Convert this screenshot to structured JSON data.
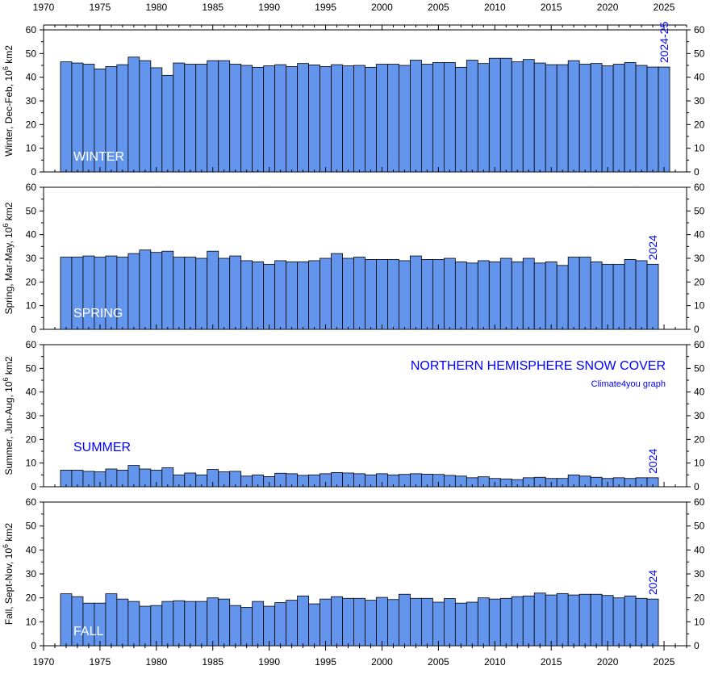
{
  "chart_data": {
    "type": "bar",
    "title": "NORTHERN HEMISPHERE SNOW COVER",
    "credit": "Climate4you graph",
    "x_ticks": [
      "1970",
      "1975",
      "1980",
      "1985",
      "1990",
      "1995",
      "2000",
      "2005",
      "2010",
      "2015",
      "2020",
      "2025"
    ],
    "xlim": [
      1970,
      2027
    ],
    "colors": {
      "bar": "#6495ed",
      "bar_edge": "#000000",
      "label_blue": "#0000ff",
      "label_white": "#ffffff"
    },
    "panels": [
      {
        "id": "winter",
        "season_label": "WINTER",
        "ylabel": "Winter, Dec-Feb, 10",
        "ylabel_sup": "6",
        "ylabel_unit": " km2",
        "end_label": "2024-25",
        "ylim": [
          0,
          60
        ],
        "y_ticks": [
          "0",
          "10",
          "20",
          "30",
          "40",
          "50",
          "60"
        ],
        "years_start": 1972,
        "values": [
          46.5,
          46.0,
          45.5,
          43.5,
          44.5,
          45.3,
          48.5,
          47.0,
          44.0,
          40.8,
          46.0,
          45.5,
          45.5,
          47.0,
          47.0,
          45.5,
          45.0,
          44.2,
          44.8,
          45.3,
          44.5,
          45.8,
          45.2,
          44.5,
          45.3,
          44.8,
          45.0,
          44.2,
          45.5,
          45.5,
          45.0,
          47.2,
          45.5,
          46.2,
          46.2,
          44.2,
          47.2,
          45.8,
          48.0,
          48.0,
          46.5,
          47.5,
          46.0,
          45.3,
          45.3,
          47.0,
          45.5,
          45.8,
          44.8,
          45.5,
          46.2,
          45.0,
          44.3,
          44.3
        ]
      },
      {
        "id": "spring",
        "season_label": "SPRING",
        "ylabel": "Spring, Mar-May, 10",
        "ylabel_sup": "6",
        "ylabel_unit": " km2",
        "end_label": "2024",
        "ylim": [
          0,
          60
        ],
        "y_ticks": [
          "0",
          "10",
          "20",
          "30",
          "40",
          "50",
          "60"
        ],
        "years_start": 1972,
        "values": [
          30.5,
          30.5,
          31.0,
          30.5,
          31.0,
          30.5,
          32.0,
          33.5,
          32.5,
          33.0,
          30.5,
          30.5,
          30.0,
          33.0,
          30.0,
          31.0,
          29.0,
          28.5,
          27.5,
          29.0,
          28.5,
          28.5,
          29.0,
          30.0,
          32.0,
          30.0,
          30.5,
          29.5,
          29.5,
          29.5,
          29.0,
          31.0,
          29.5,
          29.5,
          30.0,
          28.5,
          28.0,
          29.0,
          28.5,
          30.0,
          28.5,
          30.0,
          28.0,
          28.5,
          27.0,
          30.5,
          30.5,
          28.5,
          27.5,
          27.5,
          29.5,
          29.0,
          27.5
        ]
      },
      {
        "id": "summer",
        "season_label": "SUMMER",
        "ylabel": "Summer, Jun-Aug, 10",
        "ylabel_sup": "6",
        "ylabel_unit": " km2",
        "end_label": "2024",
        "ylim": [
          0,
          60
        ],
        "y_ticks": [
          "0",
          "10",
          "20",
          "30",
          "40",
          "50",
          "60"
        ],
        "years_start": 1972,
        "values": [
          7.0,
          7.0,
          6.5,
          6.3,
          7.5,
          7.0,
          9.0,
          7.5,
          7.0,
          8.0,
          5.0,
          5.8,
          5.0,
          7.3,
          6.3,
          6.5,
          4.5,
          5.0,
          4.3,
          5.7,
          5.5,
          4.8,
          5.0,
          5.5,
          6.0,
          5.8,
          5.5,
          5.0,
          5.5,
          5.0,
          5.2,
          5.5,
          5.3,
          5.2,
          4.8,
          4.5,
          3.8,
          4.2,
          3.5,
          3.3,
          3.0,
          3.8,
          4.0,
          3.5,
          3.5,
          5.0,
          4.5,
          4.0,
          3.5,
          3.8,
          3.5,
          3.8,
          3.8
        ]
      },
      {
        "id": "fall",
        "season_label": "FALL",
        "ylabel": "Fall, Sept-Nov, 10",
        "ylabel_sup": "6",
        "ylabel_unit": " km2",
        "end_label": "2024",
        "ylim": [
          0,
          60
        ],
        "y_ticks": [
          "0",
          "10",
          "20",
          "30",
          "40",
          "50",
          "60"
        ],
        "years_start": 1972,
        "values": [
          21.7,
          20.5,
          17.8,
          17.8,
          21.7,
          19.5,
          18.5,
          16.5,
          16.8,
          18.5,
          18.8,
          18.5,
          18.5,
          20.0,
          19.5,
          16.8,
          16.0,
          18.5,
          16.5,
          18.0,
          19.0,
          20.8,
          17.5,
          19.5,
          20.5,
          19.8,
          19.8,
          19.0,
          20.2,
          19.3,
          21.5,
          19.8,
          19.8,
          18.2,
          19.7,
          17.8,
          18.2,
          20.0,
          19.5,
          19.8,
          20.5,
          20.8,
          22.0,
          21.2,
          21.8,
          21.2,
          21.5,
          21.5,
          21.0,
          20.0,
          20.8,
          19.8,
          19.5
        ]
      }
    ]
  }
}
